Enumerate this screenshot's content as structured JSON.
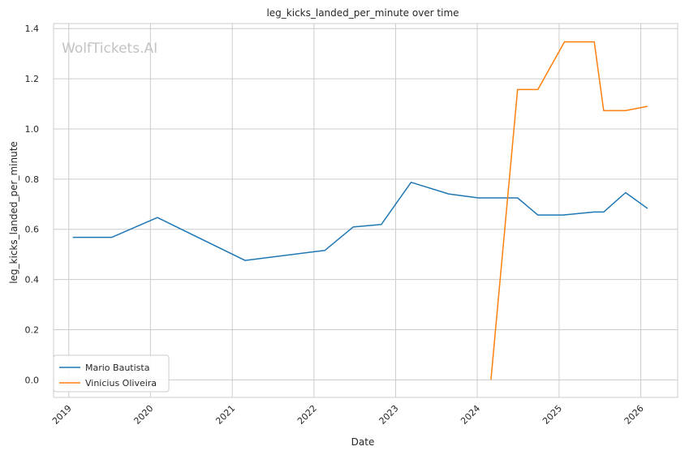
{
  "chart_data": {
    "type": "line",
    "title": "leg_kicks_landed_per_minute over time",
    "xlabel": "Date",
    "ylabel": "leg_kicks_landed_per_minute",
    "watermark": "WolfTickets.AI",
    "x_ticks": [
      "2019",
      "2020",
      "2021",
      "2022",
      "2023",
      "2024",
      "2025",
      "2026"
    ],
    "y_ticks": [
      "0.0",
      "0.2",
      "0.4",
      "0.6",
      "0.8",
      "1.0",
      "1.2",
      "1.4"
    ],
    "xlim": [
      "2018-10-25",
      "2026-06-15"
    ],
    "ylim": [
      -0.07,
      1.42
    ],
    "grid": true,
    "legend_position": "lower-left",
    "series": [
      {
        "name": "Mario Bautista",
        "color": "#1f77b4",
        "points": [
          [
            "2019-01-19",
            0.568
          ],
          [
            "2019-07-13",
            0.568
          ],
          [
            "2020-02-01",
            0.647
          ],
          [
            "2021-02-27",
            0.476
          ],
          [
            "2022-02-19",
            0.516
          ],
          [
            "2022-06-25",
            0.609
          ],
          [
            "2022-10-29",
            0.619
          ],
          [
            "2023-03-11",
            0.787
          ],
          [
            "2023-08-26",
            0.741
          ],
          [
            "2024-01-06",
            0.725
          ],
          [
            "2024-06-29",
            0.725
          ],
          [
            "2024-09-28",
            0.657
          ],
          [
            "2025-01-18",
            0.657
          ],
          [
            "2025-06-07",
            0.669
          ],
          [
            "2025-07-19",
            0.669
          ],
          [
            "2025-10-25",
            0.746
          ],
          [
            "2026-01-31",
            0.683
          ]
        ]
      },
      {
        "name": "Vinicius Oliveira",
        "color": "#ff7f0e",
        "points": [
          [
            "2024-03-02",
            0.0
          ],
          [
            "2024-06-29",
            1.157
          ],
          [
            "2024-09-28",
            1.157
          ],
          [
            "2025-01-25",
            1.347
          ],
          [
            "2025-06-07",
            1.347
          ],
          [
            "2025-07-19",
            1.073
          ],
          [
            "2025-10-25",
            1.073
          ],
          [
            "2026-01-31",
            1.09
          ]
        ]
      }
    ]
  }
}
